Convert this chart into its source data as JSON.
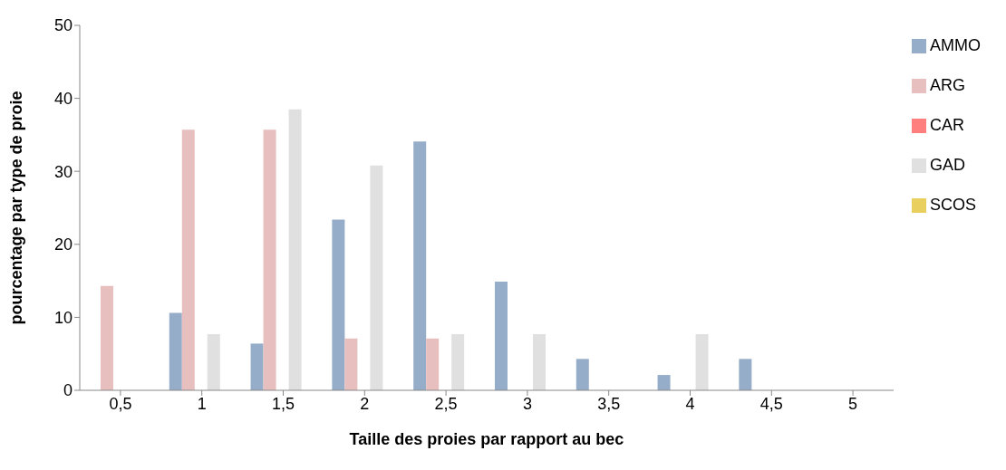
{
  "chart_data": {
    "type": "bar",
    "xlabel": "Taille des proies par rapport au bec",
    "ylabel": "pourcentage par type de proie",
    "categories": [
      "0,5",
      "1",
      "1,5",
      "2",
      "2,5",
      "3",
      "3,5",
      "4",
      "4,5",
      "5"
    ],
    "series": [
      {
        "name": "AMMO",
        "color": "#95adc9",
        "values": [
          0,
          10.6,
          6.4,
          23.4,
          34.1,
          14.9,
          4.3,
          2.1,
          4.3,
          0
        ]
      },
      {
        "name": "ARG",
        "color": "#e8bfbf",
        "values": [
          14.3,
          35.7,
          35.7,
          7.1,
          7.1,
          0,
          0,
          0,
          0,
          0
        ]
      },
      {
        "name": "CAR",
        "color": "#ff7f7f",
        "values": [
          0,
          0,
          0,
          0,
          0,
          0,
          0,
          0,
          0,
          0
        ]
      },
      {
        "name": "GAD",
        "color": "#e0e0e0",
        "values": [
          0,
          7.7,
          38.5,
          30.8,
          7.7,
          7.7,
          0,
          7.7,
          0,
          0
        ]
      },
      {
        "name": "SCOS",
        "color": "#e8cf5e",
        "values": [
          0,
          0,
          0,
          0,
          0,
          0,
          0,
          0,
          0,
          0
        ]
      }
    ],
    "ylim": [
      0,
      50
    ],
    "yticks": [
      0,
      10,
      20,
      30,
      40,
      50
    ],
    "grid": false,
    "legend": "top right"
  }
}
